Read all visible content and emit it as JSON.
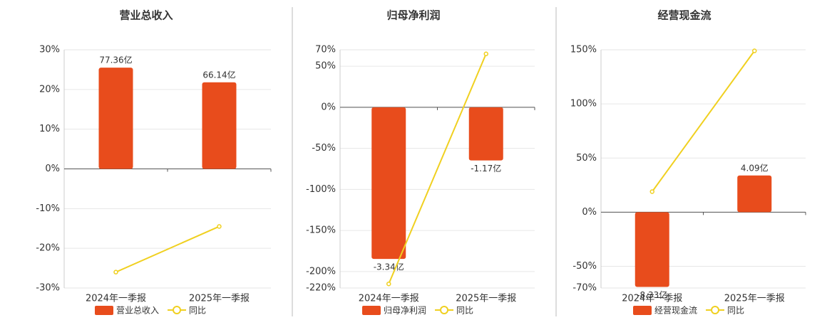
{
  "chart_data": [
    {
      "type": "bar",
      "title": "营业总收入",
      "categories": [
        "2024年一季报",
        "2025年一季报"
      ],
      "ylim": [
        -30,
        30
      ],
      "yticks": [
        {
          "value": 30,
          "label": "30%"
        },
        {
          "value": 20,
          "label": "20%"
        },
        {
          "value": 10,
          "label": "10%"
        },
        {
          "value": 0,
          "label": "0%"
        },
        {
          "value": -10,
          "label": "-10%"
        },
        {
          "value": -20,
          "label": "-20%"
        },
        {
          "value": -30,
          "label": "-30%"
        }
      ],
      "y2lim": [
        -91,
        91
      ],
      "grid": true,
      "series": [
        {
          "name": "营业总收入",
          "type": "bar",
          "axis": "y2",
          "color": "#e84c1c",
          "values": [
            77.36,
            66.14
          ],
          "value_labels": [
            "77.36亿",
            "66.14亿"
          ]
        },
        {
          "name": "同比",
          "type": "line",
          "color": "#f0d020",
          "values": [
            -26,
            -14.5
          ]
        }
      ]
    },
    {
      "type": "bar",
      "title": "归母净利润",
      "categories": [
        "2024年一季报",
        "2025年一季报"
      ],
      "ylim": [
        -220,
        70
      ],
      "yticks": [
        {
          "value": 70,
          "label": "70%"
        },
        {
          "value": 50,
          "label": "50%"
        },
        {
          "value": 0,
          "label": "0%"
        },
        {
          "value": -50,
          "label": "-50%"
        },
        {
          "value": -100,
          "label": "-100%"
        },
        {
          "value": -150,
          "label": "-150%"
        },
        {
          "value": -200,
          "label": "-200%"
        },
        {
          "value": -220,
          "label": "-220%"
        }
      ],
      "y2lim": [
        -3.98,
        1.267
      ],
      "grid": true,
      "series": [
        {
          "name": "归母净利润",
          "type": "bar",
          "axis": "y2",
          "color": "#e84c1c",
          "values": [
            -3.34,
            -1.17
          ],
          "value_labels": [
            "-3.34亿",
            "-1.17亿"
          ]
        },
        {
          "name": "同比",
          "type": "line",
          "color": "#f0d020",
          "values": [
            -215,
            65
          ]
        }
      ]
    },
    {
      "type": "bar",
      "title": "经营现金流",
      "categories": [
        "2024年一季报",
        "2025年一季报"
      ],
      "ylim": [
        -70,
        150
      ],
      "yticks": [
        {
          "value": 150,
          "label": "150%"
        },
        {
          "value": 100,
          "label": "100%"
        },
        {
          "value": 50,
          "label": "50%"
        },
        {
          "value": 0,
          "label": "0%"
        },
        {
          "value": -50,
          "label": "-50%"
        },
        {
          "value": -70,
          "label": "-70%"
        }
      ],
      "y2lim": [
        -8.45,
        18.1
      ],
      "grid": true,
      "series": [
        {
          "name": "经营现金流",
          "type": "bar",
          "axis": "y2",
          "color": "#e84c1c",
          "values": [
            -8.33,
            4.09
          ],
          "value_labels": [
            "-8.33亿",
            "4.09亿"
          ]
        },
        {
          "name": "同比",
          "type": "line",
          "color": "#f0d020",
          "values": [
            19,
            149
          ]
        }
      ]
    }
  ]
}
